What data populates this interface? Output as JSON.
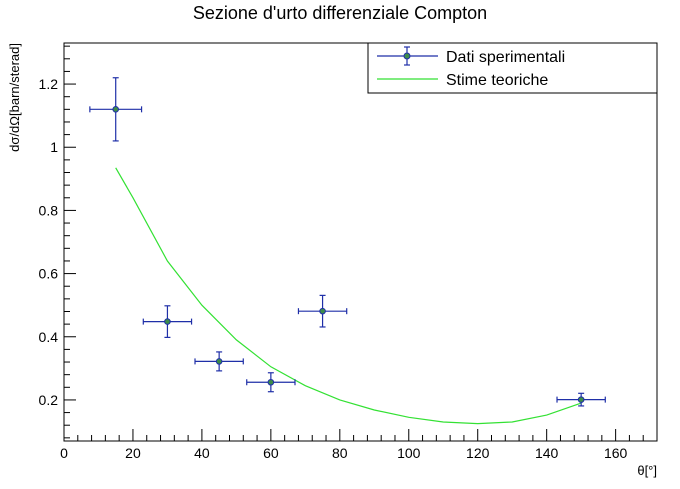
{
  "chart_data": {
    "type": "scatter",
    "title": "Sezione d'urto differenziale Compton",
    "xlabel": "θ[°]",
    "ylabel": "dσ/dΩ[barn/sterad]",
    "xlim": [
      0,
      172
    ],
    "ylim": [
      0.07,
      1.33
    ],
    "xticks": [
      0,
      20,
      40,
      60,
      80,
      100,
      120,
      140,
      160
    ],
    "xtick_labels": [
      "0",
      "20",
      "40",
      "60",
      "80",
      "100",
      "120",
      "140",
      "160"
    ],
    "yticks": [
      0.2,
      0.4,
      0.6,
      0.8,
      1,
      1.2
    ],
    "ytick_labels": [
      "0.2",
      "0.4",
      "0.6",
      "0.8",
      "1",
      "1.2"
    ],
    "legend_position": "top-right",
    "series": [
      {
        "name": "Dati sperimentali",
        "kind": "points-with-error-bars",
        "color": "#1f2fa8",
        "marker_color": "#3d8c4a",
        "points": [
          {
            "x": 15,
            "y": 1.12,
            "xerr": 7.5,
            "yerr": 0.1
          },
          {
            "x": 30,
            "y": 0.448,
            "xerr": 7,
            "yerr": 0.05
          },
          {
            "x": 45,
            "y": 0.322,
            "xerr": 7,
            "yerr": 0.03
          },
          {
            "x": 60,
            "y": 0.256,
            "xerr": 7,
            "yerr": 0.03
          },
          {
            "x": 75,
            "y": 0.481,
            "xerr": 7,
            "yerr": 0.05
          },
          {
            "x": 150,
            "y": 0.201,
            "xerr": 7,
            "yerr": 0.02
          }
        ]
      },
      {
        "name": "Stime teoriche",
        "kind": "line",
        "color": "#33e133",
        "points": [
          {
            "x": 15,
            "y": 0.935
          },
          {
            "x": 20,
            "y": 0.84
          },
          {
            "x": 30,
            "y": 0.64
          },
          {
            "x": 40,
            "y": 0.5
          },
          {
            "x": 50,
            "y": 0.39
          },
          {
            "x": 60,
            "y": 0.305
          },
          {
            "x": 70,
            "y": 0.245
          },
          {
            "x": 80,
            "y": 0.2
          },
          {
            "x": 90,
            "y": 0.168
          },
          {
            "x": 100,
            "y": 0.145
          },
          {
            "x": 110,
            "y": 0.13
          },
          {
            "x": 120,
            "y": 0.125
          },
          {
            "x": 130,
            "y": 0.13
          },
          {
            "x": 140,
            "y": 0.152
          },
          {
            "x": 150,
            "y": 0.19
          }
        ]
      }
    ]
  }
}
